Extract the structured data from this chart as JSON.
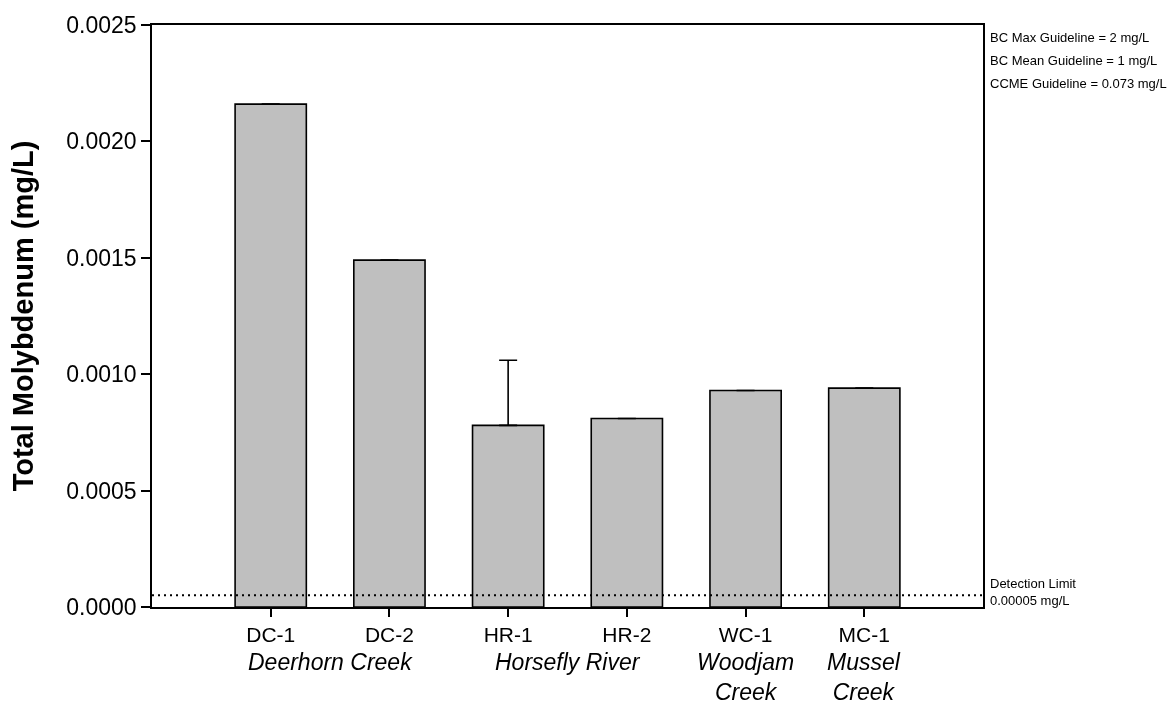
{
  "chart_data": {
    "type": "bar",
    "ylabel": "Total Molybdenum (mg/L)",
    "categories": [
      "DC-1",
      "DC-2",
      "HR-1",
      "HR-2",
      "WC-1",
      "MC-1"
    ],
    "values": [
      0.00216,
      0.00149,
      0.00078,
      0.00081,
      0.00093,
      0.00094
    ],
    "color": "#bfbfbf",
    "errors": [
      null,
      null,
      [
        0.00078,
        0.00106
      ],
      null,
      null,
      null
    ],
    "ylim": [
      0,
      0.0025
    ],
    "yticks": [
      {
        "value": 0,
        "label": "0.0000"
      },
      0.0005,
      {
        "value": 0.001,
        "label": "0.0010"
      },
      0.0015,
      {
        "value": 0.002,
        "label": "0.0020"
      },
      0.0025
    ],
    "ref_lines": [
      {
        "axis": "y",
        "value": 5e-05,
        "label": "Detection Limit\n0.00005 mg/L",
        "color": "#000000",
        "line_style": "dotted"
      }
    ],
    "annotations": [
      "Deerhorn Creek",
      "Horsefly River",
      "Woodjam\nCreek",
      "Mussel\nCreek",
      "BC Max Guideline = 2 mg/L",
      "BC Mean Guideline = 1 mg/L",
      "CCME Guideline = 0.073 mg/L"
    ]
  }
}
